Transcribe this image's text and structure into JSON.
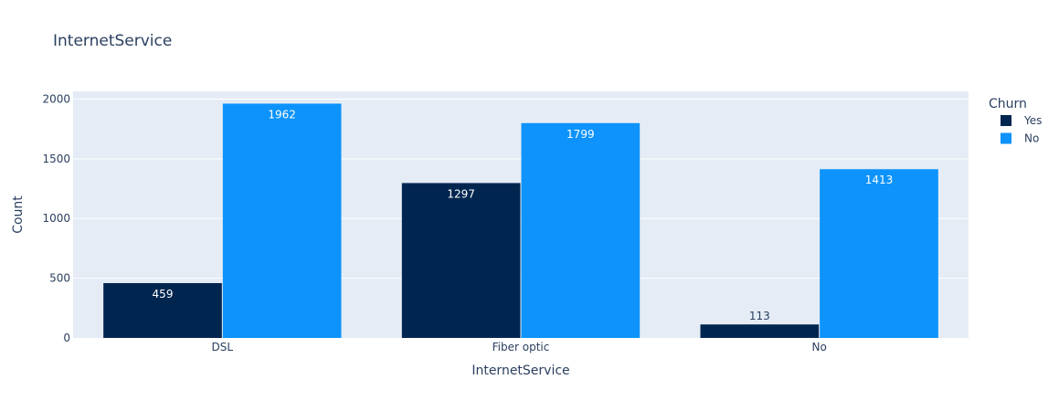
{
  "chart_data": {
    "type": "bar",
    "title": "InternetService",
    "xlabel": "InternetService",
    "ylabel": "Count",
    "categories": [
      "DSL",
      "Fiber optic",
      "No"
    ],
    "series": [
      {
        "name": "Yes",
        "values": [
          459,
          1297,
          113
        ],
        "color": "#00264f"
      },
      {
        "name": "No",
        "values": [
          1962,
          1799,
          1413
        ],
        "color": "#0d93fb"
      }
    ],
    "ylim": [
      0,
      2065
    ],
    "yticks": [
      0,
      500,
      1000,
      1500,
      2000
    ],
    "grid": true,
    "legend_title": "Churn",
    "legend_position": "top-right",
    "plot_background": "#e5ecf6"
  }
}
